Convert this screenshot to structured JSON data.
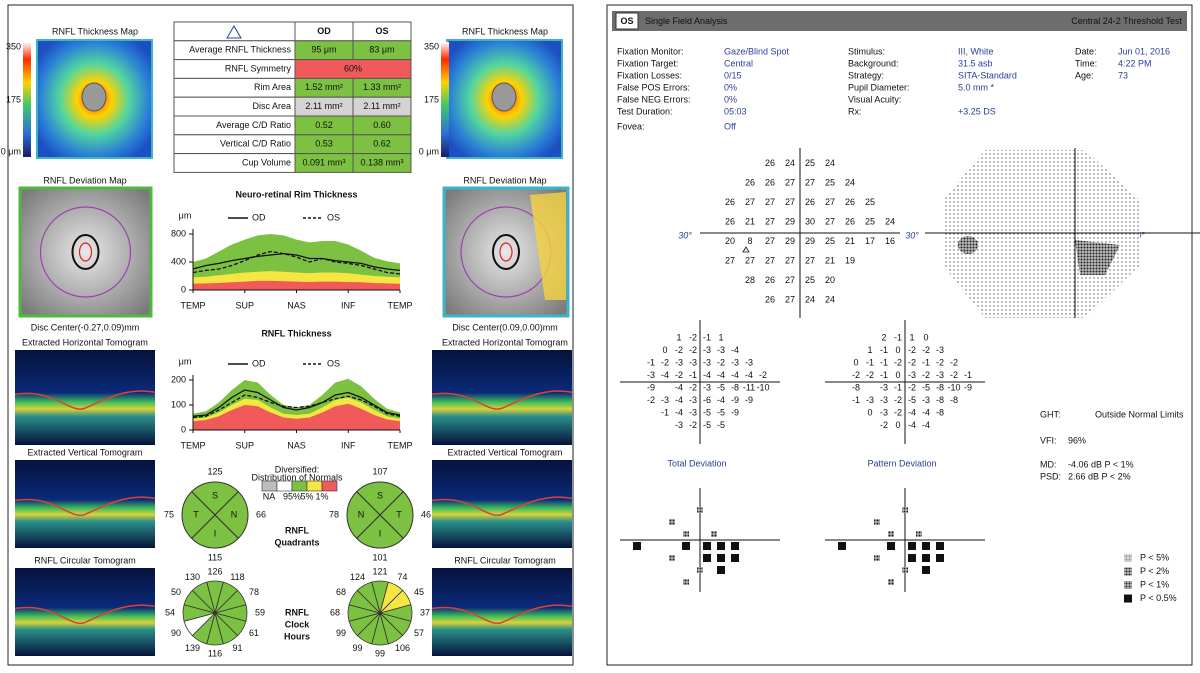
{
  "left": {
    "od_map": {
      "title": "RNFL Thickness Map",
      "scale": [
        "350",
        "175",
        "0 μm"
      ]
    },
    "os_map": {
      "title": "RNFL Thickness Map",
      "scale": [
        "350",
        "175",
        "0 μm"
      ]
    },
    "table": {
      "headers": [
        "OD",
        "OS"
      ],
      "rows": [
        [
          "Average RNFL Thickness",
          "95 μm",
          "83 μm"
        ],
        [
          "RNFL Symmetry",
          "60%"
        ],
        [
          "Rim Area",
          "1.52 mm²",
          "1.33 mm²"
        ],
        [
          "Disc Area",
          "2.11 mm²",
          "2.11 mm²"
        ],
        [
          "Average C/D Ratio",
          "0.52",
          "0.60"
        ],
        [
          "Vertical C/D Ratio",
          "0.53",
          "0.62"
        ],
        [
          "Cup Volume",
          "0.091 mm³",
          "0.138 mm³"
        ]
      ],
      "colors": [
        [
          "#7dc142",
          "#7dc142"
        ],
        [
          "#f05a5a"
        ],
        [
          "#7dc142",
          "#7dc142"
        ],
        [
          "#d4d4d4",
          "#d4d4d4"
        ],
        [
          "#7dc142",
          "#7dc142"
        ],
        [
          "#7dc142",
          "#7dc142"
        ],
        [
          "#7dc142",
          "#7dc142"
        ]
      ]
    },
    "od_deviation": {
      "title": "RNFL Deviation Map",
      "disc_center": "Disc Center(-0.27,0.09)mm"
    },
    "os_deviation": {
      "title": "RNFL Deviation Map",
      "disc_center": "Disc Center(0.09,0.00)mm"
    },
    "od_tomograms": [
      "Extracted Horizontal Tomogram",
      "Extracted Vertical Tomogram",
      "RNFL Circular Tomogram"
    ],
    "os_tomograms": [
      "Extracted Horizontal Tomogram",
      "Extracted Vertical Tomogram",
      "RNFL Circular Tomogram"
    ],
    "charts": [
      {
        "type": "line",
        "title": "Neuro-retinal Rim Thickness",
        "unit": "μm",
        "ylim": [
          0,
          800
        ],
        "yticks": [
          0,
          400,
          800
        ],
        "xlim": [
          0,
          4
        ],
        "xticks": [
          {
            "value": 0,
            "label": "TEMP"
          },
          {
            "value": 1,
            "label": "SUP"
          },
          {
            "value": 2,
            "label": "NAS"
          },
          {
            "value": 3,
            "label": "INF"
          },
          {
            "value": 4,
            "label": "TEMP"
          }
        ],
        "x": [
          0,
          0.25,
          0.5,
          0.75,
          1,
          1.25,
          1.5,
          1.75,
          2,
          2.25,
          2.5,
          2.75,
          3,
          3.25,
          3.5,
          3.75,
          4
        ],
        "bands": [
          {
            "color": "#7dc142",
            "values": [
              400,
              450,
              550,
              650,
              720,
              780,
              800,
              780,
              720,
              680,
              700,
              700,
              650,
              560,
              460,
              410,
              380
            ]
          },
          {
            "color": "#f5e642",
            "values": [
              180,
              190,
              210,
              230,
              250,
              260,
              270,
              260,
              250,
              240,
              250,
              250,
              240,
              220,
              200,
              190,
              180
            ]
          },
          {
            "color": "#f05a5a",
            "values": [
              90,
              95,
              100,
              110,
              120,
              130,
              130,
              125,
              120,
              115,
              120,
              120,
              115,
              110,
              100,
              95,
              90
            ]
          }
        ],
        "series": [
          {
            "name": "OD",
            "color": "#111111",
            "dash": false,
            "values": [
              300,
              350,
              380,
              420,
              450,
              480,
              500,
              520,
              500,
              450,
              450,
              420,
              400,
              380,
              330,
              300,
              280
            ]
          },
          {
            "name": "OS",
            "color": "#111111",
            "dash": true,
            "values": [
              250,
              280,
              300,
              350,
              420,
              500,
              550,
              520,
              470,
              400,
              450,
              400,
              380,
              350,
              300,
              250,
              230
            ]
          }
        ]
      },
      {
        "type": "line",
        "title": "RNFL Thickness",
        "unit": "μm",
        "ylim": [
          0,
          200
        ],
        "yticks": [
          0,
          100,
          200
        ],
        "xlim": [
          0,
          4
        ],
        "xticks": [
          {
            "value": 0,
            "label": "TEMP"
          },
          {
            "value": 1,
            "label": "SUP"
          },
          {
            "value": 2,
            "label": "NAS"
          },
          {
            "value": 3,
            "label": "INF"
          },
          {
            "value": 4,
            "label": "TEMP"
          }
        ],
        "x": [
          0,
          0.25,
          0.5,
          0.75,
          1,
          1.25,
          1.5,
          1.75,
          2,
          2.25,
          2.5,
          2.75,
          3,
          3.25,
          3.5,
          3.75,
          4
        ],
        "bands": [
          {
            "color": "#7dc142",
            "values": [
              65,
              75,
              110,
              160,
              200,
              190,
              140,
              100,
              90,
              100,
              140,
              190,
              205,
              175,
              125,
              85,
              70
            ]
          },
          {
            "color": "#f5e642",
            "values": [
              45,
              50,
              70,
              100,
              125,
              120,
              90,
              65,
              60,
              65,
              90,
              120,
              130,
              110,
              80,
              55,
              45
            ]
          },
          {
            "color": "#f05a5a",
            "values": [
              35,
              40,
              55,
              80,
              100,
              95,
              70,
              50,
              45,
              50,
              70,
              95,
              105,
              85,
              60,
              42,
              35
            ]
          }
        ],
        "series": [
          {
            "name": "OD",
            "color": "#111111",
            "dash": false,
            "values": [
              55,
              60,
              90,
              130,
              160,
              150,
              120,
              90,
              80,
              90,
              110,
              140,
              150,
              130,
              100,
              70,
              60
            ]
          },
          {
            "name": "OS",
            "color": "#111111",
            "dash": true,
            "values": [
              50,
              55,
              80,
              110,
              140,
              130,
              110,
              95,
              90,
              95,
              110,
              125,
              135,
              120,
              95,
              65,
              55
            ]
          }
        ]
      }
    ],
    "normals_legend": {
      "title": [
        "Diversified:",
        "Distribution of Normals"
      ],
      "labels": [
        "NA",
        "95%",
        "5%",
        "1%"
      ],
      "colors": [
        "#bdbdbd",
        "#ffffff",
        "#7dc142",
        "#f5e642",
        "#f05a5a"
      ]
    },
    "quadrants": {
      "title": [
        "RNFL",
        "Quadrants"
      ],
      "od": {
        "values": [
          125,
          66,
          115,
          75
        ],
        "labels": [
          "S",
          "N",
          "I",
          "T"
        ]
      },
      "os": {
        "values": [
          107,
          46,
          101,
          78
        ],
        "labels": [
          "S",
          "T",
          "I",
          "N"
        ]
      },
      "color": "#7dc142"
    },
    "clock_hours": {
      "title": [
        "RNFL",
        "Clock",
        "Hours"
      ],
      "od": {
        "values": [
          126,
          118,
          78,
          59,
          61,
          91,
          116,
          139,
          90,
          54,
          50,
          130
        ],
        "colors": [
          "#7dc142",
          "#7dc142",
          "#7dc142",
          "#7dc142",
          "#7dc142",
          "#7dc142",
          "#7dc142",
          "#7dc142",
          "#ffffff",
          "#7dc142",
          "#7dc142",
          "#7dc142"
        ]
      },
      "os": {
        "values": [
          121,
          74,
          45,
          37,
          57,
          106,
          99,
          99,
          99,
          68,
          68,
          124
        ],
        "colors": [
          "#7dc142",
          "#f5e642",
          "#f5e642",
          "#7dc142",
          "#7dc142",
          "#7dc142",
          "#7dc142",
          "#7dc142",
          "#7dc142",
          "#7dc142",
          "#7dc142",
          "#7dc142"
        ]
      }
    }
  },
  "right": {
    "header": {
      "eye": "OS",
      "title": "Single Field Analysis",
      "test": "Central 24-2 Threshold Test"
    },
    "info": [
      [
        [
          "Fixation Monitor:",
          "Gaze/Blind Spot"
        ],
        [
          "Fixation Target:",
          "Central"
        ],
        [
          "Fixation Losses:",
          "0/15"
        ],
        [
          "False POS Errors:",
          "0%"
        ],
        [
          "False NEG Errors:",
          "0%"
        ],
        [
          "Test Duration:",
          "05:03"
        ],
        [
          "Fovea:",
          "Off"
        ]
      ],
      [
        [
          "Stimulus:",
          "III, White"
        ],
        [
          "Background:",
          "31.5 asb"
        ],
        [
          "Strategy:",
          "SITA-Standard"
        ],
        [
          "Pupil Diameter:",
          "5.0 mm *"
        ],
        [
          "Visual Acuity:"
        ],
        [
          "Rx:",
          "+3.25 DS"
        ]
      ],
      [
        [
          "Date:",
          "Jun 01, 2016"
        ],
        [
          "Time:",
          "4:22 PM"
        ],
        [
          "Age:",
          "73"
        ]
      ]
    ],
    "degree_labels": [
      "30°",
      "30°",
      "30°"
    ],
    "threshold": [
      [
        null,
        null,
        null,
        26,
        24,
        25,
        24
      ],
      [
        null,
        null,
        26,
        26,
        27,
        27,
        25,
        24
      ],
      [
        null,
        26,
        27,
        27,
        27,
        26,
        27,
        26,
        25
      ],
      [
        null,
        26,
        21,
        27,
        29,
        30,
        27,
        26,
        25,
        24
      ],
      [
        null,
        20,
        8,
        27,
        29,
        29,
        25,
        21,
        17,
        16
      ],
      [
        null,
        27,
        27,
        27,
        27,
        27,
        21,
        19
      ],
      [
        null,
        null,
        28,
        26,
        27,
        25,
        20
      ],
      [
        null,
        null,
        null,
        26,
        27,
        24,
        24
      ]
    ],
    "total_deviation": {
      "title": "Total Deviation",
      "rows": [
        [
          null,
          null,
          null,
          1,
          -2,
          -1,
          1
        ],
        [
          null,
          null,
          0,
          -2,
          -2,
          -3,
          -3,
          -4
        ],
        [
          null,
          -1,
          -2,
          -3,
          -3,
          -3,
          -2,
          -3,
          -3
        ],
        [
          null,
          -3,
          -4,
          -2,
          -1,
          -4,
          -4,
          -4,
          -4,
          -2
        ],
        [
          null,
          -9,
          null,
          -4,
          -2,
          -3,
          -5,
          -8,
          -11,
          -10
        ],
        [
          null,
          -2,
          -3,
          -4,
          -3,
          -6,
          -4,
          -9,
          -9
        ],
        [
          null,
          null,
          -1,
          -4,
          -3,
          -5,
          -5,
          -9
        ],
        [
          null,
          null,
          null,
          -3,
          -2,
          -5,
          -5
        ]
      ]
    },
    "pattern_deviation": {
      "title": "Pattern Deviation",
      "rows": [
        [
          null,
          null,
          null,
          2,
          -1,
          1,
          0
        ],
        [
          null,
          null,
          1,
          -1,
          0,
          -2,
          -2,
          -3
        ],
        [
          null,
          0,
          -1,
          -1,
          -2,
          -2,
          -1,
          -2,
          -2
        ],
        [
          null,
          -2,
          -2,
          -1,
          0,
          -3,
          -2,
          -3,
          -2,
          -1
        ],
        [
          null,
          -8,
          null,
          -3,
          -1,
          -2,
          -5,
          -8,
          -10,
          -9
        ],
        [
          null,
          -1,
          -3,
          -3,
          -2,
          -5,
          -3,
          -8,
          -8
        ],
        [
          null,
          null,
          0,
          -3,
          -2,
          -4,
          -4,
          -8
        ],
        [
          null,
          null,
          null,
          -2,
          0,
          -4,
          -4
        ]
      ]
    },
    "indices": [
      {
        "label": "GHT:",
        "value": "Outside Normal Limits",
        "color": "#e0413a"
      },
      {
        "label": "VFI:",
        "value": "96%",
        "color": "#2a3f9a"
      },
      {
        "label": "MD:",
        "value": "-4.06 dB P < 1%",
        "color": "#e0413a"
      },
      {
        "label": "PSD:",
        "value": "2.66 dB P < 2%",
        "color": "#f0821e"
      }
    ],
    "probability_legend": [
      "P < 5%",
      "P < 2%",
      "P < 1%",
      "P < 0.5%"
    ]
  }
}
